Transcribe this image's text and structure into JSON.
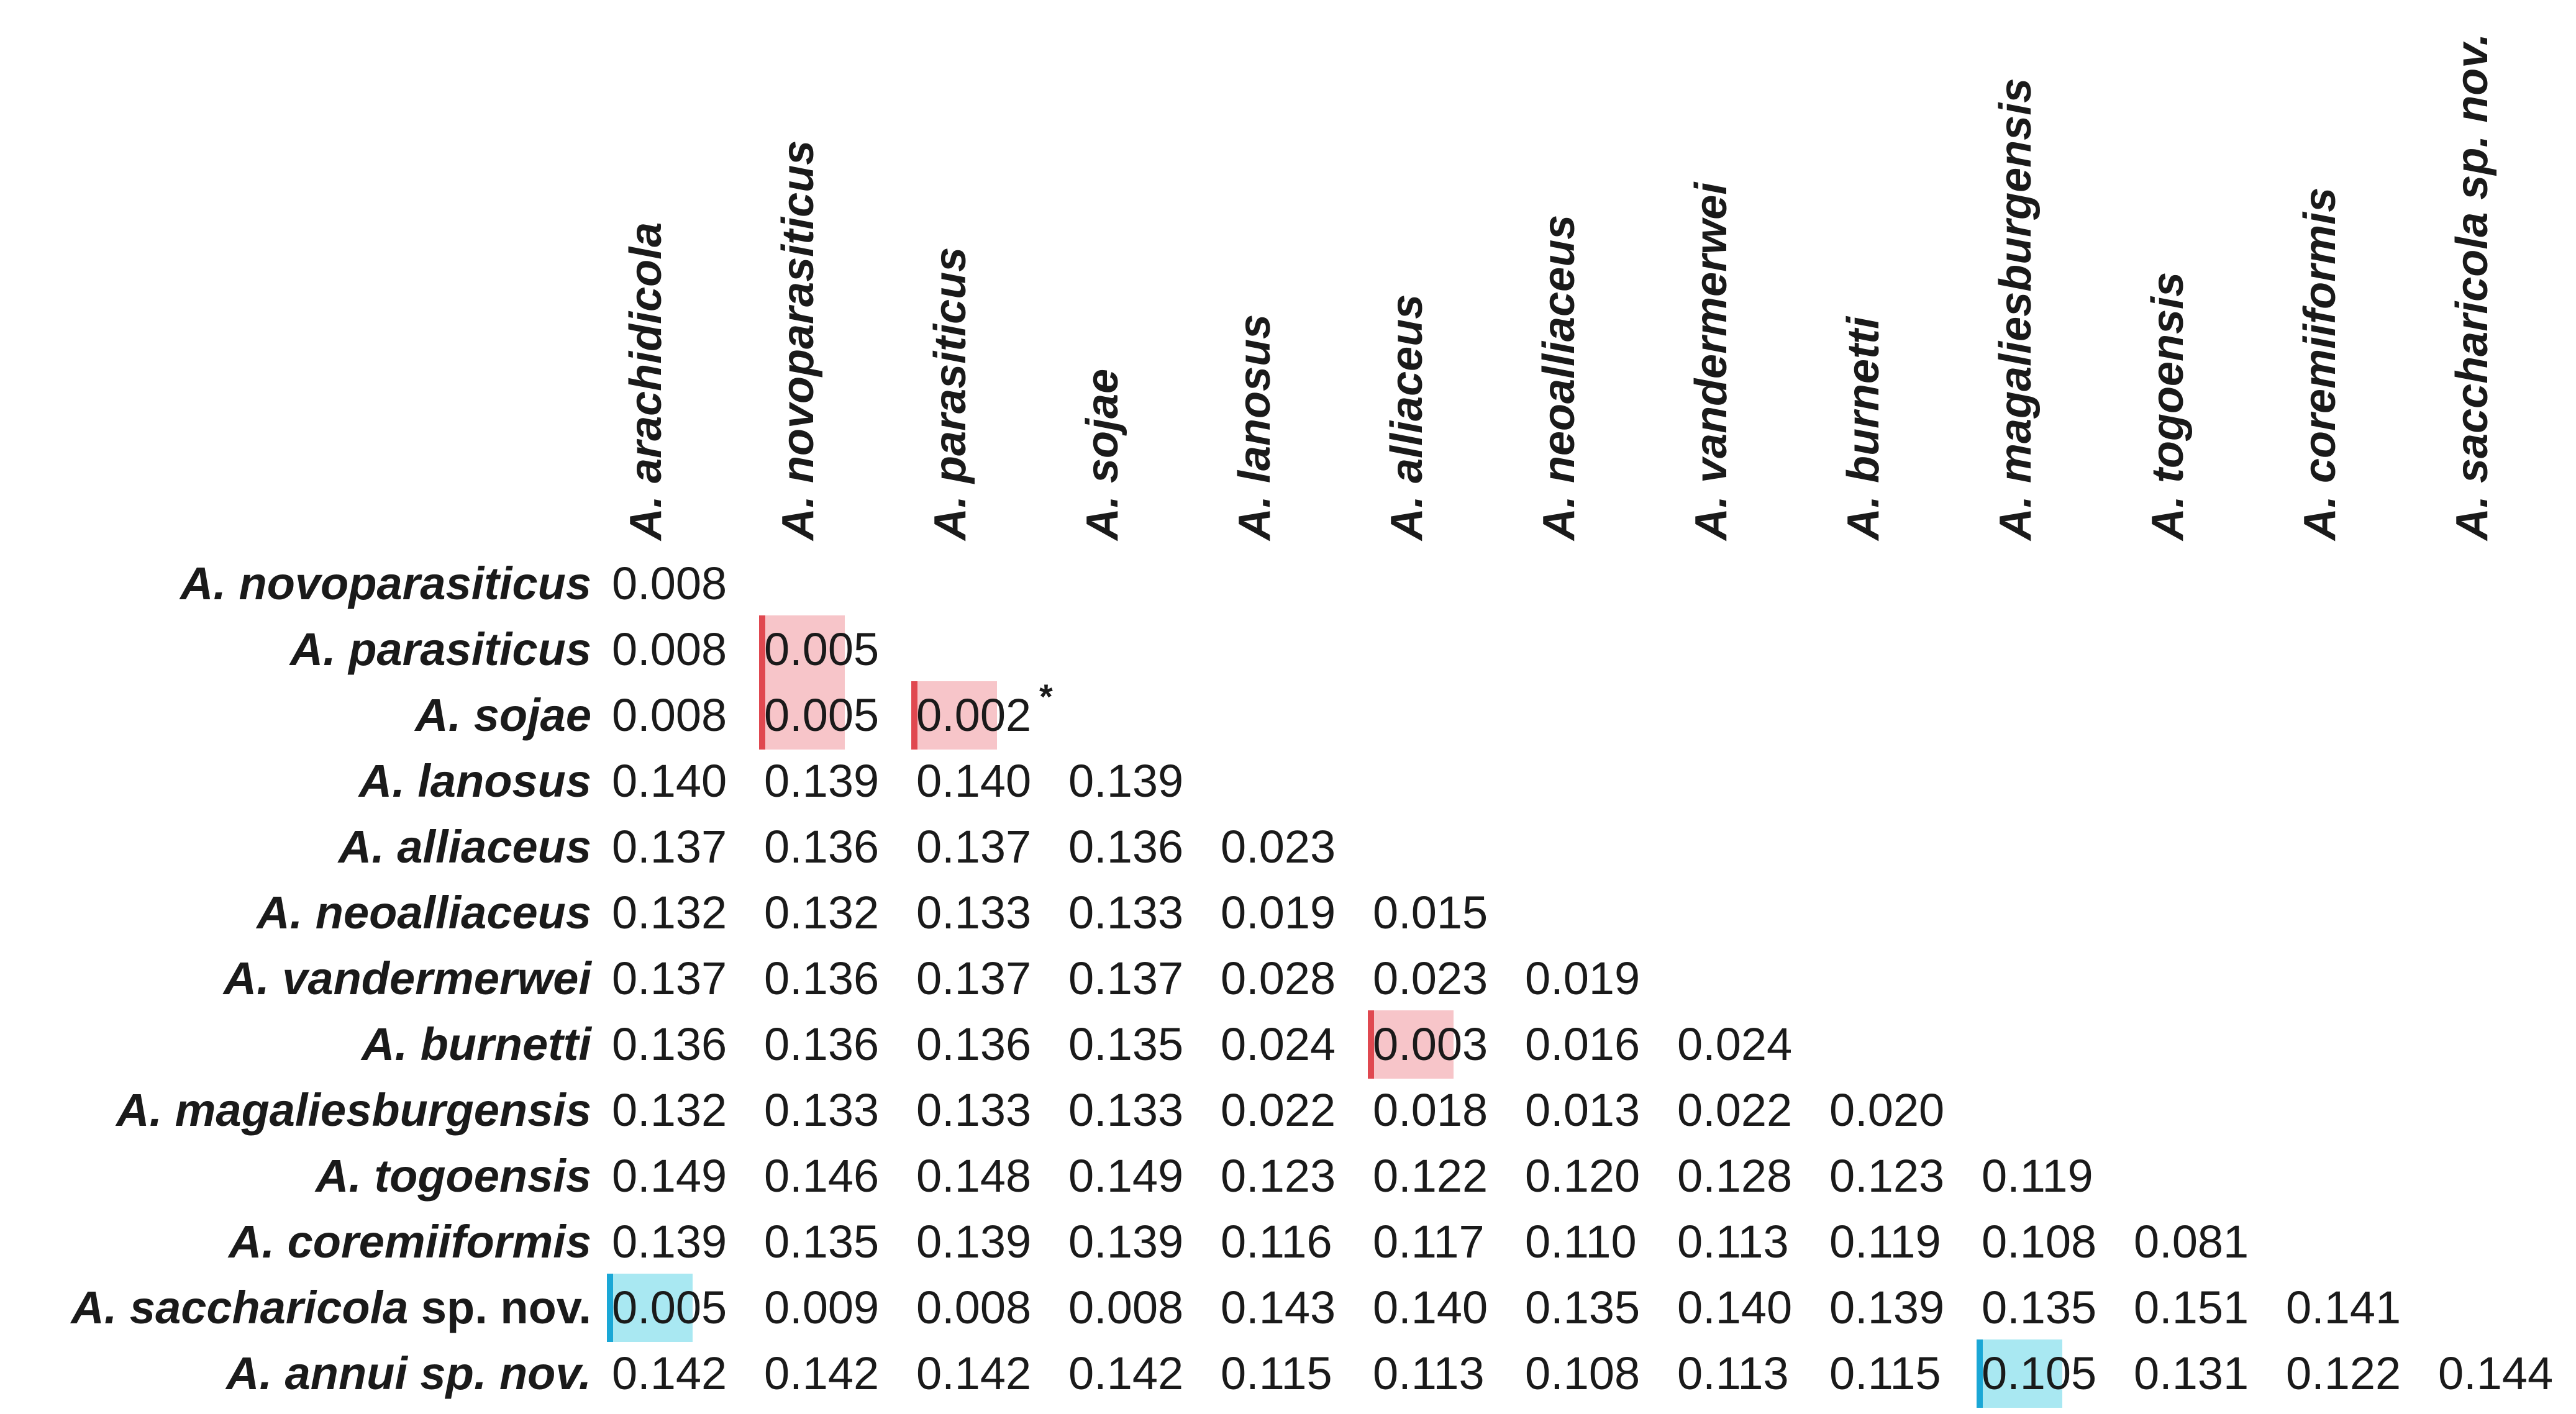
{
  "columns": [
    "A. arachidicola",
    "A. novoparasiticus",
    "A. parasiticus",
    "A. sojae",
    "A. lanosus",
    "A. alliaceus",
    "A. neoalliaceus",
    "A. vandermerwei",
    "A. burnetti",
    "A. magaliesburgensis",
    "A. togoensis",
    "A. coremiiformis",
    "A. saccharicola sp. nov."
  ],
  "rows": [
    {
      "label": "A. novoparasiticus",
      "suffix": "",
      "values": [
        "0.008"
      ]
    },
    {
      "label": "A. parasiticus",
      "suffix": "",
      "values": [
        "0.008",
        "0.005"
      ]
    },
    {
      "label": "A. sojae",
      "suffix": "",
      "values": [
        "0.008",
        "0.005",
        "0.002"
      ]
    },
    {
      "label": "A. lanosus",
      "suffix": "",
      "values": [
        "0.140",
        "0.139",
        "0.140",
        "0.139"
      ]
    },
    {
      "label": "A. alliaceus",
      "suffix": "",
      "values": [
        "0.137",
        "0.136",
        "0.137",
        "0.136",
        "0.023"
      ]
    },
    {
      "label": "A. neoalliaceus",
      "suffix": "",
      "values": [
        "0.132",
        "0.132",
        "0.133",
        "0.133",
        "0.019",
        "0.015"
      ]
    },
    {
      "label": "A. vandermerwei",
      "suffix": "",
      "values": [
        "0.137",
        "0.136",
        "0.137",
        "0.137",
        "0.028",
        "0.023",
        "0.019"
      ]
    },
    {
      "label": "A. burnetti",
      "suffix": "",
      "values": [
        "0.136",
        "0.136",
        "0.136",
        "0.135",
        "0.024",
        "0.003",
        "0.016",
        "0.024"
      ]
    },
    {
      "label": "A. magaliesburgensis",
      "suffix": "",
      "values": [
        "0.132",
        "0.133",
        "0.133",
        "0.133",
        "0.022",
        "0.018",
        "0.013",
        "0.022",
        "0.020"
      ]
    },
    {
      "label": "A. togoensis",
      "suffix": "",
      "values": [
        "0.149",
        "0.146",
        "0.148",
        "0.149",
        "0.123",
        "0.122",
        "0.120",
        "0.128",
        "0.123",
        "0.119"
      ]
    },
    {
      "label": "A. coremiiformis",
      "suffix": "",
      "values": [
        "0.139",
        "0.135",
        "0.139",
        "0.139",
        "0.116",
        "0.117",
        "0.110",
        "0.113",
        "0.119",
        "0.108",
        "0.081"
      ]
    },
    {
      "label": "A. saccharicola",
      "suffix": " sp. nov.",
      "values": [
        "0.005",
        "0.009",
        "0.008",
        "0.008",
        "0.143",
        "0.140",
        "0.135",
        "0.140",
        "0.139",
        "0.135",
        "0.151",
        "0.141"
      ]
    },
    {
      "label": "A. annui sp. nov.",
      "suffix": "",
      "values": [
        "0.142",
        "0.142",
        "0.142",
        "0.142",
        "0.115",
        "0.113",
        "0.108",
        "0.113",
        "0.115",
        "0.105",
        "0.131",
        "0.122",
        "0.144"
      ]
    }
  ],
  "highlights": [
    {
      "row": 1,
      "col": 1,
      "color": "red"
    },
    {
      "row": 2,
      "col": 1,
      "color": "red"
    },
    {
      "row": 2,
      "col": 2,
      "color": "red"
    },
    {
      "row": 7,
      "col": 5,
      "color": "red"
    },
    {
      "row": 11,
      "col": 0,
      "color": "blue"
    },
    {
      "row": 12,
      "col": 9,
      "color": "blue"
    }
  ],
  "annotations": {
    "asterisk": "*",
    "asterisk_row": 2,
    "asterisk_col": 2
  },
  "colors": {
    "highlight_red": "#f7c5c9",
    "highlight_red_edge": "#e04850",
    "highlight_blue": "#a9e8f2",
    "highlight_blue_edge": "#1aa7d6",
    "text": "#1a1a1a"
  }
}
